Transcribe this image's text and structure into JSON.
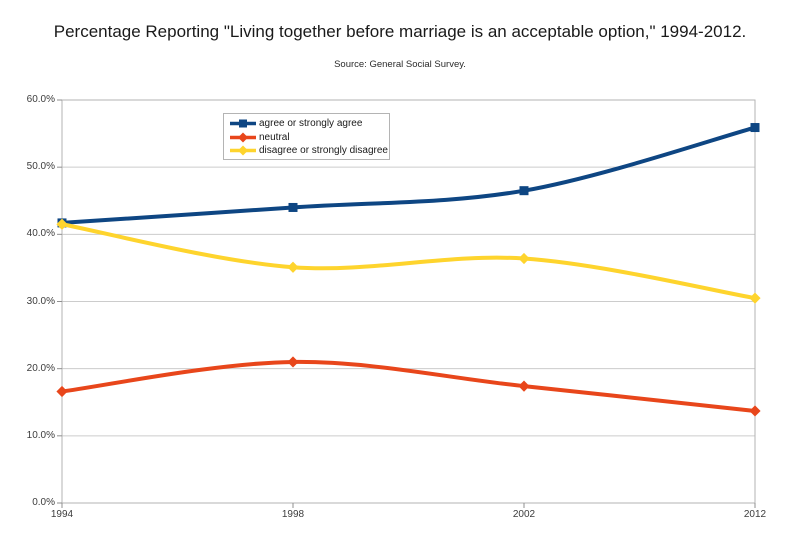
{
  "title": "Percentage Reporting \"Living together before marriage is an acceptable option,\" 1994-2012.",
  "subtitle": "Source: General Social Survey.",
  "chart_data": {
    "type": "line",
    "categories": [
      "1994",
      "1998",
      "2002",
      "2012"
    ],
    "series": [
      {
        "name": "agree or strongly agree",
        "color": "#0e4683",
        "marker": "square",
        "values": [
          41.7,
          44.0,
          46.5,
          55.9
        ]
      },
      {
        "name": "neutral",
        "color": "#e8461b",
        "marker": "diamond",
        "values": [
          16.6,
          21.0,
          17.4,
          13.7
        ]
      },
      {
        "name": "disagree or strongly disagree",
        "color": "#fed42d",
        "marker": "diamond",
        "values": [
          41.5,
          35.1,
          36.4,
          30.5
        ]
      }
    ],
    "xlabel": "",
    "ylabel": "",
    "ylim": [
      0,
      60
    ],
    "y_tick_step": 10,
    "y_tick_labels": [
      "0.0%",
      "10.0%",
      "20.0%",
      "30.0%",
      "40.0%",
      "50.0%",
      "60.0%"
    ],
    "grid": "horizontal",
    "legend_position": "top-left-inside",
    "smooth": true
  },
  "colors": {
    "background": "#ffffff",
    "grid": "#cccccc",
    "plot_border": "#b3b3b3",
    "tick": "#8f8f8f",
    "axis_label": "#3c3c3c",
    "title": "#1a1a1a"
  }
}
